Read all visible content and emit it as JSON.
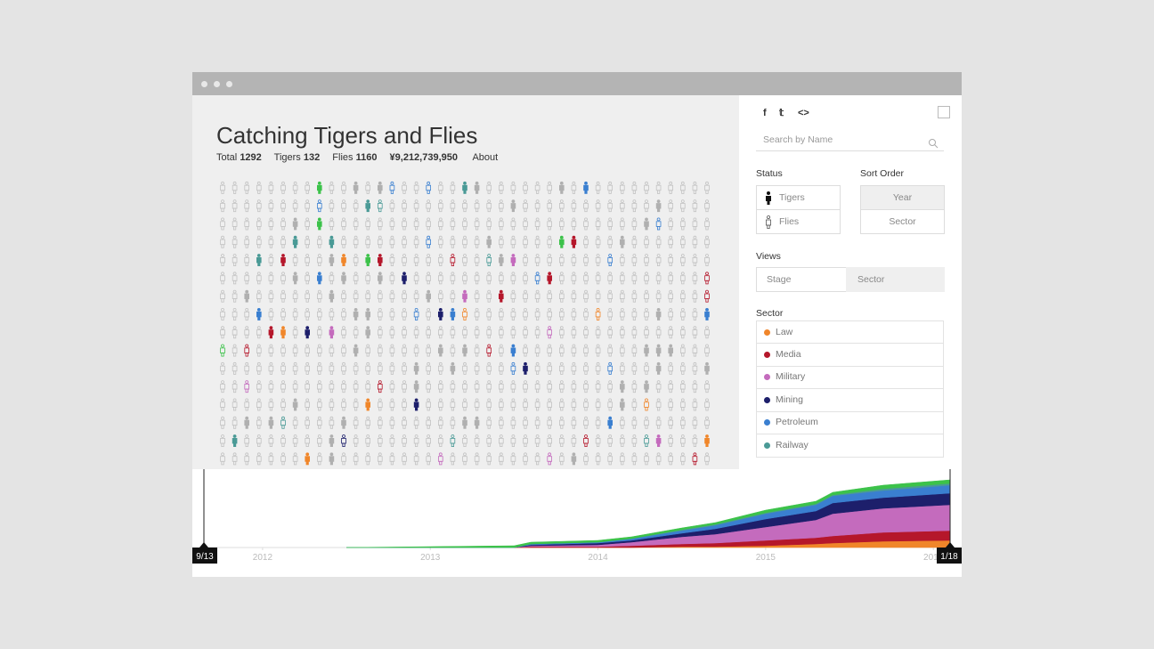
{
  "header": {
    "title": "Catching Tigers and Flies",
    "stats": [
      {
        "label": "Total",
        "value": 1292
      },
      {
        "label": "Tigers",
        "value": 132
      },
      {
        "label": "Flies",
        "value": 1160
      }
    ],
    "amount": "¥9,212,739,950",
    "about": "About"
  },
  "sidebar": {
    "share": [
      "f",
      "𝕥",
      "<>"
    ],
    "search_placeholder": "Search by Name",
    "status": {
      "heading": "Status",
      "options": [
        "Tigers",
        "Flies"
      ]
    },
    "sort_order": {
      "heading": "Sort Order",
      "options": [
        "Year",
        "Sector"
      ]
    },
    "views": {
      "heading": "Views",
      "options": [
        "Stage",
        "Sector"
      ]
    },
    "sector_heading": "Sector"
  },
  "chart_data": {
    "type": "area",
    "stacked": true,
    "x": [
      2012.5,
      2013.0,
      2013.5,
      2013.6,
      2014.0,
      2014.2,
      2014.5,
      2014.7,
      2015.0,
      2015.3,
      2015.4,
      2015.7,
      2016.1
    ],
    "series": [
      {
        "name": "Law",
        "color": "#f0862a",
        "values": [
          0,
          0,
          0,
          0,
          0,
          0,
          1,
          1,
          2,
          4,
          5,
          7,
          8
        ]
      },
      {
        "name": "Media",
        "color": "#b5172b",
        "values": [
          0,
          0,
          0,
          1,
          1,
          2,
          3,
          4,
          6,
          7,
          8,
          10,
          11
        ]
      },
      {
        "name": "Military",
        "color": "#c46bbd",
        "values": [
          0,
          0,
          0,
          1,
          2,
          4,
          8,
          10,
          15,
          20,
          25,
          27,
          29
        ]
      },
      {
        "name": "Mining",
        "color": "#1d1f6b",
        "values": [
          0,
          0,
          0,
          1,
          2,
          2,
          4,
          6,
          9,
          10,
          12,
          12,
          13
        ]
      },
      {
        "name": "Petroleum",
        "color": "#3a7fd0",
        "values": [
          0,
          0,
          0,
          1,
          1,
          2,
          3,
          4,
          6,
          7,
          8,
          8,
          9
        ]
      },
      {
        "name": "Railway",
        "color": "#4a9a96",
        "values": [
          0,
          0,
          0,
          0,
          0,
          0,
          1,
          1,
          1,
          1,
          1,
          2,
          2
        ]
      },
      {
        "color": "#3cc24a",
        "values": [
          0,
          1,
          2,
          2,
          2,
          2,
          2,
          2,
          3,
          3,
          3,
          4,
          4
        ]
      }
    ],
    "xlim": [
      2011.65,
      2016.1
    ],
    "ylim": [
      0,
      76
    ],
    "xticks": [
      2012,
      2013,
      2014,
      2015,
      2016
    ],
    "range_labels": {
      "start": "9/13",
      "end": "1/18"
    }
  }
}
